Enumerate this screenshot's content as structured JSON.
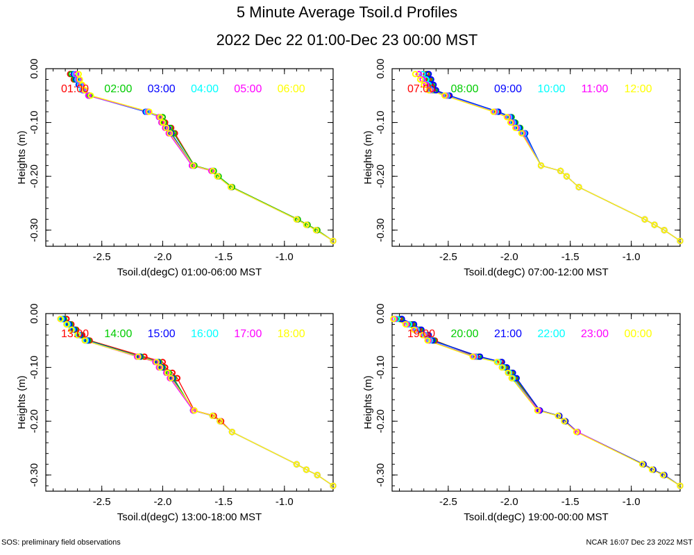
{
  "title": "5 Minute Average Tsoil.d Profiles",
  "subtitle": "2022 Dec 22 01:00-Dec 23 00:00 MST",
  "footer_left": "SOS: preliminary field observations",
  "footer_right": "NCAR 16:07 Dec 23 2022 MST",
  "colors": [
    "#ff0000",
    "#00cc00",
    "#0000ff",
    "#00ffff",
    "#ff00ff",
    "#ffff00"
  ],
  "chart_data": [
    {
      "type": "line",
      "title": "",
      "xlabel": "Tsoil.d(degC) 01:00-06:00 MST",
      "ylabel": "Heights (m)",
      "xlim": [
        -2.96,
        -0.6
      ],
      "ylim": [
        -0.33,
        0.0
      ],
      "xticks": [
        "-2.5",
        "-2.0",
        "-1.5",
        "-1.0"
      ],
      "yticks": [
        "0.00",
        "-0.10",
        "-0.20",
        "-0.30"
      ],
      "heights": [
        -0.01,
        -0.02,
        -0.03,
        -0.04,
        -0.05,
        -0.08,
        -0.09,
        -0.1,
        -0.11,
        -0.12,
        -0.18,
        -0.19,
        -0.2,
        -0.22,
        -0.28,
        -0.29,
        -0.3,
        -0.32
      ],
      "series": [
        {
          "name": "01:00",
          "values": [
            -2.76,
            -2.73,
            -2.67,
            -2.64,
            -2.6,
            -2.13,
            -2.0,
            -1.98,
            -1.93,
            -1.9,
            -1.74,
            -1.58,
            -1.55,
            -1.43,
            -0.89,
            -0.81,
            -0.73,
            -0.6
          ]
        },
        {
          "name": "02:00",
          "values": [
            -2.75,
            -2.72,
            -2.68,
            -2.65,
            -2.6,
            -2.12,
            -2.0,
            -1.99,
            -1.94,
            -1.91,
            -1.74,
            -1.58,
            -1.54,
            -1.43,
            -0.89,
            -0.81,
            -0.73,
            -0.6
          ]
        },
        {
          "name": "03:00",
          "values": [
            -2.73,
            -2.71,
            -2.69,
            -2.66,
            -2.61,
            -2.14,
            -2.02,
            -2.0,
            -1.96,
            -1.93,
            -1.75,
            -1.59,
            -1.55,
            -1.44,
            -0.9,
            -0.82,
            -0.74,
            -0.6
          ]
        },
        {
          "name": "04:00",
          "values": [
            -2.72,
            -2.7,
            -2.68,
            -2.66,
            -2.61,
            -2.13,
            -2.03,
            -2.01,
            -1.97,
            -1.94,
            -1.76,
            -1.59,
            -1.55,
            -1.44,
            -0.9,
            -0.82,
            -0.74,
            -0.6
          ]
        },
        {
          "name": "05:00",
          "values": [
            -2.71,
            -2.69,
            -2.67,
            -2.65,
            -2.61,
            -2.12,
            -2.03,
            -2.01,
            -1.98,
            -1.95,
            -1.76,
            -1.6,
            -1.55,
            -1.44,
            -0.9,
            -0.82,
            -0.74,
            -0.6
          ]
        },
        {
          "name": "06:00",
          "values": [
            -2.69,
            -2.68,
            -2.66,
            -2.64,
            -2.59,
            -2.11,
            -2.02,
            -2.0,
            -1.97,
            -1.94,
            -1.75,
            -1.59,
            -1.55,
            -1.44,
            -0.9,
            -0.82,
            -0.74,
            -0.6
          ]
        }
      ]
    },
    {
      "type": "line",
      "title": "",
      "xlabel": "Tsoil.d(degC) 07:00-12:00 MST",
      "ylabel": "Heights (m)",
      "xlim": [
        -2.96,
        -0.6
      ],
      "ylim": [
        -0.33,
        0.0
      ],
      "xticks": [
        "-2.5",
        "-2.0",
        "-1.5",
        "-1.0"
      ],
      "yticks": [
        "0.00",
        "-0.10",
        "-0.20",
        "-0.30"
      ],
      "heights": [
        -0.01,
        -0.02,
        -0.03,
        -0.04,
        -0.05,
        -0.08,
        -0.09,
        -0.1,
        -0.11,
        -0.12,
        -0.18,
        -0.19,
        -0.2,
        -0.22,
        -0.28,
        -0.29,
        -0.3,
        -0.32
      ],
      "series": [
        {
          "name": "07:00",
          "values": [
            -2.68,
            -2.66,
            -2.65,
            -2.63,
            -2.5,
            -2.1,
            -1.99,
            -1.96,
            -1.92,
            -1.88,
            -1.74,
            -1.58,
            -1.53,
            -1.43,
            -0.89,
            -0.81,
            -0.73,
            -0.6
          ]
        },
        {
          "name": "08:00",
          "values": [
            -2.67,
            -2.65,
            -2.63,
            -2.61,
            -2.49,
            -2.09,
            -1.98,
            -1.95,
            -1.91,
            -1.87,
            -1.74,
            -1.58,
            -1.53,
            -1.43,
            -0.89,
            -0.81,
            -0.73,
            -0.6
          ]
        },
        {
          "name": "09:00",
          "values": [
            -2.66,
            -2.64,
            -2.62,
            -2.6,
            -2.49,
            -2.09,
            -1.99,
            -1.96,
            -1.92,
            -1.87,
            -1.74,
            -1.58,
            -1.53,
            -1.43,
            -0.89,
            -0.81,
            -0.73,
            -0.6
          ]
        },
        {
          "name": "10:00",
          "values": [
            -2.71,
            -2.68,
            -2.66,
            -2.64,
            -2.51,
            -2.11,
            -2.0,
            -1.97,
            -1.93,
            -1.88,
            -1.74,
            -1.58,
            -1.53,
            -1.43,
            -0.89,
            -0.81,
            -0.73,
            -0.6
          ]
        },
        {
          "name": "11:00",
          "values": [
            -2.74,
            -2.71,
            -2.68,
            -2.65,
            -2.52,
            -2.12,
            -2.01,
            -1.98,
            -1.94,
            -1.89,
            -1.74,
            -1.58,
            -1.53,
            -1.43,
            -0.89,
            -0.81,
            -0.73,
            -0.6
          ]
        },
        {
          "name": "12:00",
          "values": [
            -2.77,
            -2.73,
            -2.7,
            -2.66,
            -2.53,
            -2.13,
            -2.02,
            -1.99,
            -1.95,
            -1.9,
            -1.74,
            -1.58,
            -1.53,
            -1.43,
            -0.89,
            -0.81,
            -0.73,
            -0.6
          ]
        }
      ]
    },
    {
      "type": "line",
      "title": "",
      "xlabel": "Tsoil.d(degC) 13:00-18:00 MST",
      "ylabel": "Heights (m)",
      "xlim": [
        -2.96,
        -0.6
      ],
      "ylim": [
        -0.33,
        0.0
      ],
      "xticks": [
        "-2.5",
        "-2.0",
        "-1.5",
        "-1.0"
      ],
      "yticks": [
        "0.00",
        "-0.10",
        "-0.20",
        "-0.30"
      ],
      "heights": [
        -0.01,
        -0.02,
        -0.03,
        -0.04,
        -0.05,
        -0.08,
        -0.09,
        -0.1,
        -0.11,
        -0.12,
        -0.18,
        -0.19,
        -0.2,
        -0.22,
        -0.28,
        -0.29,
        -0.3,
        -0.32
      ],
      "series": [
        {
          "name": "13:00",
          "values": [
            -2.79,
            -2.75,
            -2.71,
            -2.66,
            -2.6,
            -2.15,
            -2.0,
            -1.98,
            -1.92,
            -1.88,
            -1.74,
            -1.58,
            -1.52,
            -1.43,
            -0.9,
            -0.82,
            -0.73,
            -0.6
          ]
        },
        {
          "name": "14:00",
          "values": [
            -2.81,
            -2.76,
            -2.72,
            -2.67,
            -2.61,
            -2.18,
            -2.03,
            -2.0,
            -1.95,
            -1.91,
            -1.75,
            -1.59,
            -1.53,
            -1.43,
            -0.9,
            -0.82,
            -0.73,
            -0.6
          ]
        },
        {
          "name": "15:00",
          "values": [
            -2.82,
            -2.77,
            -2.73,
            -2.68,
            -2.62,
            -2.19,
            -2.04,
            -2.01,
            -1.96,
            -1.92,
            -1.75,
            -1.59,
            -1.53,
            -1.43,
            -0.9,
            -0.82,
            -0.73,
            -0.6
          ]
        },
        {
          "name": "16:00",
          "values": [
            -2.83,
            -2.78,
            -2.74,
            -2.69,
            -2.63,
            -2.2,
            -2.05,
            -2.02,
            -1.97,
            -1.93,
            -1.75,
            -1.59,
            -1.53,
            -1.43,
            -0.9,
            -0.82,
            -0.73,
            -0.6
          ]
        },
        {
          "name": "17:00",
          "values": [
            -2.84,
            -2.79,
            -2.75,
            -2.7,
            -2.64,
            -2.21,
            -2.06,
            -2.03,
            -1.97,
            -1.94,
            -1.75,
            -1.59,
            -1.53,
            -1.43,
            -0.9,
            -0.82,
            -0.73,
            -0.6
          ]
        },
        {
          "name": "18:00",
          "values": [
            -2.84,
            -2.79,
            -2.75,
            -2.7,
            -2.64,
            -2.2,
            -2.05,
            -2.02,
            -1.96,
            -1.93,
            -1.74,
            -1.59,
            -1.53,
            -1.43,
            -0.9,
            -0.82,
            -0.73,
            -0.6
          ]
        }
      ]
    },
    {
      "type": "line",
      "title": "",
      "xlabel": "Tsoil.d(degC) 19:00-00:00 MST",
      "ylabel": "Heights (m)",
      "xlim": [
        -2.96,
        -0.6
      ],
      "ylim": [
        -0.33,
        0.0
      ],
      "xticks": [
        "-2.5",
        "-2.0",
        "-1.5",
        "-1.0"
      ],
      "yticks": [
        "0.00",
        "-0.10",
        "-0.20",
        "-0.30"
      ],
      "heights": [
        -0.01,
        -0.02,
        -0.03,
        -0.04,
        -0.05,
        -0.08,
        -0.09,
        -0.1,
        -0.11,
        -0.12,
        -0.18,
        -0.19,
        -0.2,
        -0.22,
        -0.28,
        -0.29,
        -0.3,
        -0.32
      ],
      "series": [
        {
          "name": "19:00",
          "values": [
            -2.9,
            -2.8,
            -2.74,
            -2.67,
            -2.61,
            -2.27,
            -2.07,
            -2.04,
            -1.99,
            -1.96,
            -1.75,
            -1.59,
            -1.54,
            -1.44,
            -0.9,
            -0.82,
            -0.73,
            -0.6
          ]
        },
        {
          "name": "20:00",
          "values": [
            -2.89,
            -2.79,
            -2.73,
            -2.66,
            -2.62,
            -2.25,
            -2.06,
            -2.03,
            -1.98,
            -1.95,
            -1.75,
            -1.59,
            -1.54,
            -1.44,
            -0.9,
            -0.82,
            -0.73,
            -0.6
          ]
        },
        {
          "name": "21:00",
          "values": [
            -2.88,
            -2.78,
            -2.72,
            -2.66,
            -2.63,
            -2.24,
            -2.06,
            -2.02,
            -1.97,
            -1.94,
            -1.75,
            -1.59,
            -1.54,
            -1.44,
            -0.9,
            -0.82,
            -0.73,
            -0.6
          ]
        },
        {
          "name": "22:00",
          "values": [
            -2.92,
            -2.82,
            -2.76,
            -2.69,
            -2.65,
            -2.28,
            -2.09,
            -2.05,
            -2.0,
            -1.97,
            -1.76,
            -1.6,
            -1.55,
            -1.44,
            -0.91,
            -0.83,
            -0.74,
            -0.6
          ]
        },
        {
          "name": "23:00",
          "values": [
            -2.94,
            -2.84,
            -2.77,
            -2.7,
            -2.66,
            -2.29,
            -2.1,
            -2.06,
            -2.01,
            -1.98,
            -1.76,
            -1.6,
            -1.55,
            -1.44,
            -0.91,
            -0.83,
            -0.74,
            -0.6
          ]
        },
        {
          "name": "00:00",
          "values": [
            -2.95,
            -2.85,
            -2.78,
            -2.71,
            -2.67,
            -2.3,
            -2.1,
            -2.06,
            -2.01,
            -1.98,
            -1.77,
            -1.6,
            -1.55,
            -1.45,
            -0.91,
            -0.83,
            -0.74,
            -0.6
          ]
        }
      ]
    }
  ]
}
